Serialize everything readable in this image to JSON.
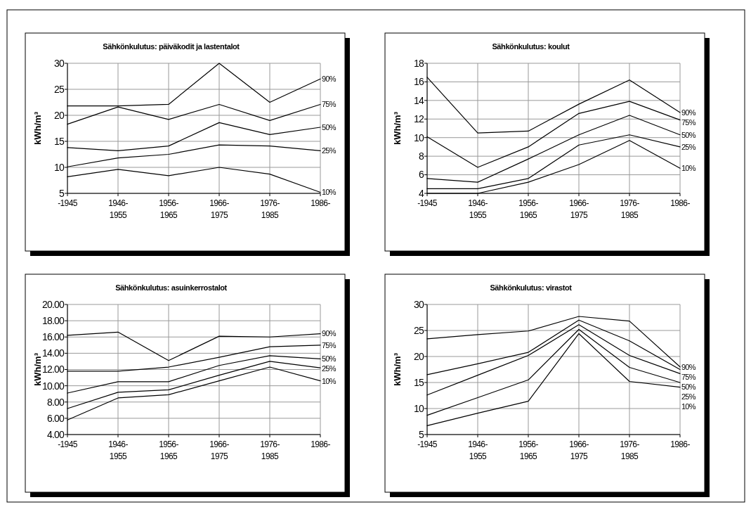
{
  "chart_data": [
    {
      "type": "line",
      "title": "Sähkönkulutus: päiväkodit ja lastentalot",
      "ylabel": "kWh/m³",
      "categories": [
        "-1945",
        "1946-1955",
        "1956-1965",
        "1966-1975",
        "1976-1985",
        "1986-"
      ],
      "ylim": [
        5,
        30
      ],
      "yticks": [
        5,
        10,
        15,
        20,
        25,
        30
      ],
      "grid": true,
      "series": [
        {
          "name": "90%",
          "color": "#000000",
          "values": [
            21.8,
            21.8,
            22.1,
            30.0,
            22.5,
            27.0
          ]
        },
        {
          "name": "75%",
          "color": "#000000",
          "values": [
            18.3,
            21.6,
            19.2,
            22.1,
            19.0,
            22.1
          ]
        },
        {
          "name": "50%",
          "color": "#000000",
          "values": [
            13.8,
            13.2,
            14.1,
            18.6,
            16.3,
            17.7
          ]
        },
        {
          "name": "25%",
          "color": "#000000",
          "values": [
            10.1,
            11.8,
            12.5,
            14.3,
            14.1,
            13.2
          ]
        },
        {
          "name": "10%",
          "color": "#000000",
          "values": [
            8.2,
            9.6,
            8.4,
            10.0,
            8.7,
            5.2
          ]
        }
      ]
    },
    {
      "type": "line",
      "title": "Sähkönkulutus: koulut",
      "ylabel": "kWh/m³",
      "categories": [
        "-1945",
        "1946-1955",
        "1956-1965",
        "1966-1975",
        "1976-1985",
        "1986-"
      ],
      "ylim": [
        4,
        18
      ],
      "yticks": [
        4,
        6,
        8,
        10,
        12,
        14,
        16,
        18
      ],
      "grid": true,
      "series": [
        {
          "name": "90%",
          "color": "#000000",
          "values": [
            16.5,
            10.5,
            10.7,
            13.6,
            16.2,
            12.7
          ]
        },
        {
          "name": "75%",
          "color": "#000000",
          "values": [
            10.1,
            6.8,
            9.0,
            12.6,
            13.9,
            11.9
          ]
        },
        {
          "name": "50%",
          "color": "#000000",
          "values": [
            5.6,
            5.2,
            7.7,
            10.3,
            12.4,
            10.3
          ]
        },
        {
          "name": "25%",
          "color": "#000000",
          "values": [
            4.5,
            4.5,
            5.6,
            9.2,
            10.3,
            9.0
          ]
        },
        {
          "name": "10%",
          "color": "#000000",
          "values": [
            4.0,
            4.0,
            5.2,
            7.1,
            9.7,
            6.7
          ]
        }
      ]
    },
    {
      "type": "line",
      "title": "Sähkönkulutus: asuinkerrostalot",
      "ylabel": "kWh/m³",
      "categories": [
        "-1945",
        "1946-1955",
        "1956-1965",
        "1966-1975",
        "1976-1985",
        "1986-"
      ],
      "ylim": [
        4,
        20
      ],
      "yticks": [
        {
          "value": 4,
          "label": "4.00"
        },
        {
          "value": 6,
          "label": "6.00"
        },
        {
          "value": 8,
          "label": "8.00"
        },
        {
          "value": 10,
          "label": "10.00"
        },
        {
          "value": 12,
          "label": "12.00"
        },
        {
          "value": 14,
          "label": "14.00"
        },
        {
          "value": 16,
          "label": "16.00"
        },
        {
          "value": 18,
          "label": "18.00"
        },
        {
          "value": 20,
          "label": "20.00"
        }
      ],
      "grid": true,
      "series": [
        {
          "name": "90%",
          "color": "#000000",
          "values": [
            16.2,
            16.6,
            13.1,
            16.1,
            16.0,
            16.4
          ]
        },
        {
          "name": "75%",
          "color": "#000000",
          "values": [
            11.8,
            11.8,
            12.3,
            13.5,
            14.8,
            15.0
          ]
        },
        {
          "name": "50%",
          "color": "#000000",
          "values": [
            9.1,
            10.5,
            10.5,
            12.5,
            13.7,
            13.3
          ]
        },
        {
          "name": "25%",
          "color": "#000000",
          "values": [
            7.2,
            9.2,
            9.5,
            11.3,
            13.0,
            12.2
          ]
        },
        {
          "name": "10%",
          "color": "#000000",
          "values": [
            5.8,
            8.5,
            8.9,
            10.6,
            12.3,
            10.6
          ]
        }
      ]
    },
    {
      "type": "line",
      "title": "Sähkönkulutus: virastot",
      "ylabel": "kWh/m³",
      "categories": [
        "-1945",
        "1946-1955",
        "1956-1965",
        "1966-1975",
        "1976-1985",
        "1986-"
      ],
      "ylim": [
        5,
        30
      ],
      "yticks": [
        5,
        10,
        15,
        20,
        25,
        30
      ],
      "grid": true,
      "series": [
        {
          "name": "90%",
          "color": "#000000",
          "values": [
            23.4,
            24.2,
            24.9,
            27.7,
            26.8,
            18.0
          ]
        },
        {
          "name": "75%",
          "color": "#000000",
          "values": [
            16.5,
            18.6,
            20.8,
            27.0,
            23.0,
            17.5
          ]
        },
        {
          "name": "50%",
          "color": "#000000",
          "values": [
            12.6,
            16.4,
            20.2,
            26.1,
            20.2,
            16.7
          ]
        },
        {
          "name": "25%",
          "color": "#000000",
          "values": [
            8.7,
            12.1,
            15.5,
            25.2,
            17.9,
            15.0
          ]
        },
        {
          "name": "10%",
          "color": "#000000",
          "values": [
            6.7,
            9.1,
            11.4,
            24.4,
            15.2,
            14.1
          ]
        }
      ]
    }
  ]
}
